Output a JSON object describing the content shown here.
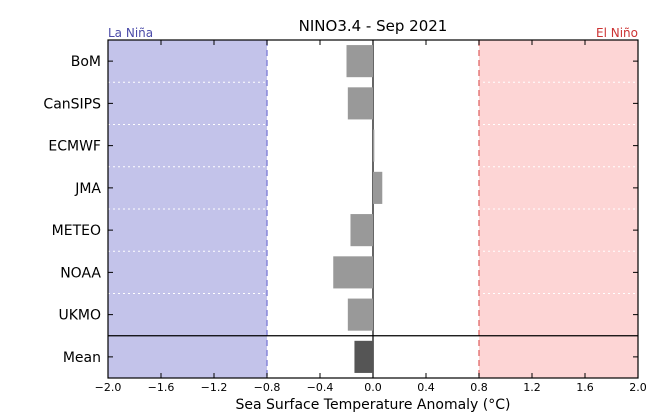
{
  "chart_data": {
    "type": "bar",
    "orientation": "horizontal",
    "title": "NINO3.4 - Sep 2021",
    "xlabel": "Sea Surface Temperature Anomaly (°C)",
    "ylabel": "",
    "xlim": [
      -2.0,
      2.0
    ],
    "xticks": [
      -2.0,
      -1.6,
      -1.2,
      -0.8,
      -0.4,
      0.0,
      0.4,
      0.8,
      1.2,
      1.6,
      2.0
    ],
    "xtick_labels": [
      "−2.0",
      "−1.6",
      "−1.2",
      "−0.8",
      "−0.4",
      "0.0",
      "0.4",
      "0.8",
      "1.2",
      "1.6",
      "2.0"
    ],
    "categories": [
      "BoM",
      "CanSIPS",
      "ECMWF",
      "JMA",
      "METEO",
      "NOAA",
      "UKMO",
      "Mean"
    ],
    "values": [
      -0.2,
      -0.19,
      0.01,
      0.07,
      -0.17,
      -0.3,
      -0.19,
      -0.14
    ],
    "thresholds": {
      "la_nina": -0.8,
      "el_nino": 0.8
    },
    "regions": [
      {
        "label": "La Niña",
        "from": -2.0,
        "to": -0.8,
        "color": "#c3c3ea",
        "label_color": "#4b4ba8",
        "line_color": "#7a7ad6"
      },
      {
        "label": "El Niño",
        "from": 0.8,
        "to": 2.0,
        "color": "#fdd5d5",
        "label_color": "#cc3333",
        "line_color": "#e06666"
      }
    ],
    "bar_color": "#999999",
    "mean_bar_color": "#555555",
    "grid": "horizontal dotted, white"
  }
}
